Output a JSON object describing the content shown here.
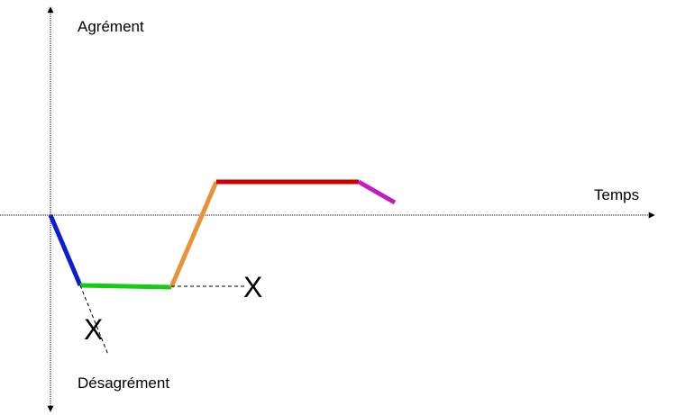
{
  "labels": {
    "y_positive": "Agrément",
    "y_negative": "Désagrément",
    "x_axis": "Temps",
    "cross_1": "X",
    "cross_2": "X"
  },
  "colors": {
    "axis": "#000000",
    "segment_descent": "#0a1fd0",
    "segment_low_plateau": "#14cc14",
    "segment_rise": "#e8923a",
    "segment_high_plateau": "#cc0000",
    "segment_decline": "#c21bc2",
    "dashed_branch": "#000000"
  }
}
